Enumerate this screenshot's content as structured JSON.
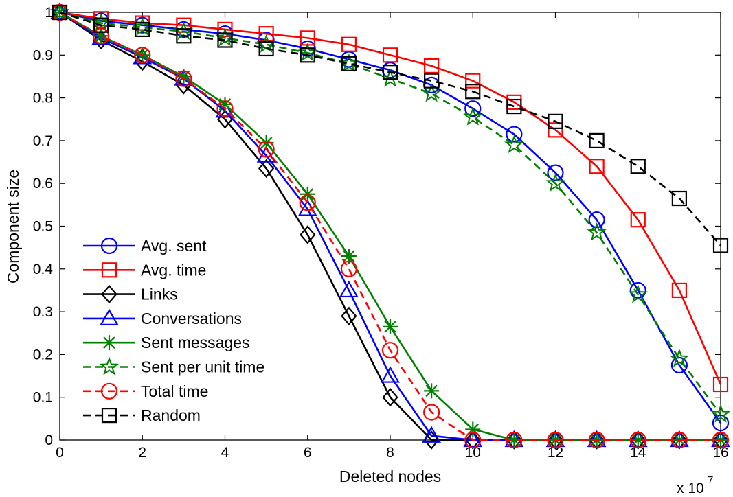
{
  "chart_data": {
    "type": "line",
    "xlabel": "Deleted nodes",
    "ylabel": "Component size",
    "x_multiplier_label": "x 10",
    "x_multiplier_exponent": "7",
    "xlim": [
      0,
      16
    ],
    "ylim": [
      0,
      1
    ],
    "xticks": [
      0,
      2,
      4,
      6,
      8,
      10,
      12,
      14,
      16
    ],
    "yticks": [
      0,
      0.1,
      0.2,
      0.3,
      0.4,
      0.5,
      0.6,
      0.7,
      0.8,
      0.9,
      1
    ],
    "grid": false,
    "legend_position": "bottom-left",
    "x": [
      0,
      1,
      2,
      3,
      4,
      5,
      6,
      7,
      8,
      9,
      10,
      11,
      12,
      13,
      14,
      15,
      16
    ],
    "series": [
      {
        "name": "Avg. sent",
        "color": "#0000ff",
        "marker": "circle",
        "dash": false,
        "values": [
          1.0,
          0.98,
          0.97,
          0.96,
          0.95,
          0.935,
          0.915,
          0.89,
          0.865,
          0.83,
          0.775,
          0.715,
          0.625,
          0.515,
          0.35,
          0.175,
          0.04
        ]
      },
      {
        "name": "Avg. time",
        "color": "#ff0000",
        "marker": "square",
        "dash": false,
        "values": [
          1.0,
          0.985,
          0.975,
          0.97,
          0.96,
          0.95,
          0.94,
          0.925,
          0.9,
          0.875,
          0.84,
          0.79,
          0.725,
          0.64,
          0.515,
          0.35,
          0.13
        ]
      },
      {
        "name": "Links",
        "color": "#000000",
        "marker": "diamond",
        "dash": false,
        "values": [
          1.0,
          0.935,
          0.885,
          0.83,
          0.75,
          0.635,
          0.48,
          0.29,
          0.1,
          0.0,
          0.0,
          0.0,
          0.0,
          0.0,
          0.0,
          0.0,
          0.0
        ]
      },
      {
        "name": "Conversations",
        "color": "#0000ff",
        "marker": "triangle",
        "dash": false,
        "values": [
          1.0,
          0.94,
          0.895,
          0.845,
          0.77,
          0.665,
          0.54,
          0.35,
          0.15,
          0.01,
          0.0,
          0.0,
          0.0,
          0.0,
          0.0,
          0.0,
          0.0
        ]
      },
      {
        "name": "Sent messages",
        "color": "#008000",
        "marker": "asterisk",
        "dash": false,
        "values": [
          1.0,
          0.945,
          0.9,
          0.85,
          0.785,
          0.695,
          0.575,
          0.43,
          0.265,
          0.115,
          0.025,
          0.0,
          0.0,
          0.0,
          0.0,
          0.0,
          0.0
        ]
      },
      {
        "name": "Sent per unit time",
        "color": "#008000",
        "marker": "star",
        "dash": true,
        "values": [
          1.0,
          0.975,
          0.965,
          0.955,
          0.94,
          0.925,
          0.905,
          0.88,
          0.845,
          0.81,
          0.755,
          0.69,
          0.6,
          0.485,
          0.34,
          0.19,
          0.06
        ]
      },
      {
        "name": "Total time",
        "color": "#ff0000",
        "marker": "circle",
        "dash": true,
        "values": [
          1.0,
          0.945,
          0.9,
          0.845,
          0.775,
          0.68,
          0.555,
          0.4,
          0.21,
          0.065,
          0.0,
          0.0,
          0.0,
          0.0,
          0.0,
          0.0,
          0.0
        ]
      },
      {
        "name": "Random",
        "color": "#000000",
        "marker": "square",
        "dash": true,
        "values": [
          1.0,
          0.97,
          0.96,
          0.945,
          0.935,
          0.915,
          0.9,
          0.88,
          0.86,
          0.84,
          0.815,
          0.78,
          0.745,
          0.7,
          0.64,
          0.565,
          0.455
        ]
      }
    ]
  }
}
